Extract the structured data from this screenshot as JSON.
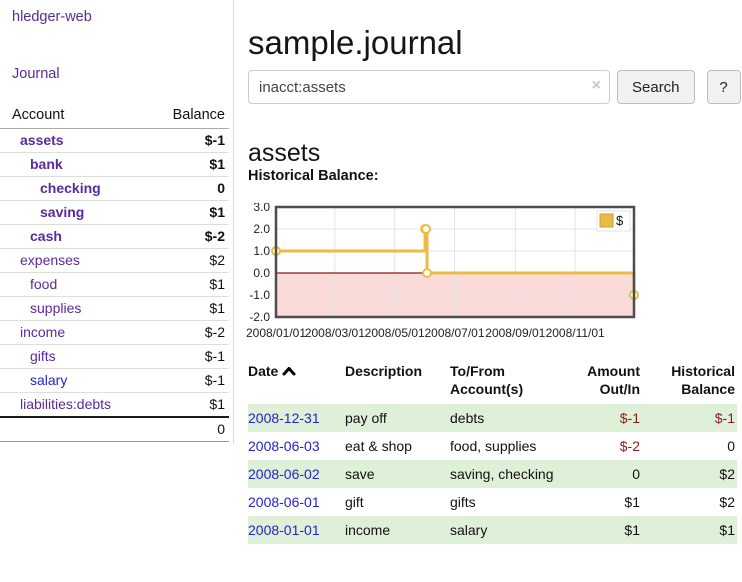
{
  "app": {
    "title": "hledger-web",
    "journal_link": "Journal"
  },
  "colors": {
    "accent_purple": "#5a2a9d",
    "link_blue": "#2424cc",
    "negative_strong": "#8b1c1c",
    "negative_soft": "#b66f73",
    "row_stripe_green": "#dff0d8",
    "chart_line_yellow": "#e9bd45",
    "chart_negative_fill": "#fbdada",
    "chart_zero_line": "#8c1717"
  },
  "sidebar": {
    "columns": {
      "account": "Account",
      "balance": "Balance"
    },
    "accounts": [
      {
        "name": "assets",
        "indent": 1,
        "bold": true,
        "balance": "$-1",
        "neg": "strong",
        "link": "purple"
      },
      {
        "name": "bank",
        "indent": 2,
        "bold": true,
        "balance": "$1",
        "neg": "none",
        "link": "purple"
      },
      {
        "name": "checking",
        "indent": 3,
        "bold": true,
        "balance": "0",
        "neg": "none",
        "link": "purple"
      },
      {
        "name": "saving",
        "indent": 3,
        "bold": true,
        "balance": "$1",
        "neg": "none",
        "link": "purple"
      },
      {
        "name": "cash",
        "indent": 2,
        "bold": true,
        "balance": "$-2",
        "neg": "strong",
        "link": "purple"
      },
      {
        "name": "expenses",
        "indent": 1,
        "bold": false,
        "balance": "$2",
        "neg": "none",
        "link": "purple"
      },
      {
        "name": "food",
        "indent": 2,
        "bold": false,
        "balance": "$1",
        "neg": "none",
        "link": "purple"
      },
      {
        "name": "supplies",
        "indent": 2,
        "bold": false,
        "balance": "$1",
        "neg": "none",
        "link": "purple"
      },
      {
        "name": "income",
        "indent": 1,
        "bold": false,
        "balance": "$-2",
        "neg": "soft",
        "link": "purple"
      },
      {
        "name": "gifts",
        "indent": 2,
        "bold": false,
        "balance": "$-1",
        "neg": "soft",
        "link": "purple"
      },
      {
        "name": "salary",
        "indent": 2,
        "bold": false,
        "balance": "$-1",
        "neg": "soft",
        "link": "blue"
      },
      {
        "name": "liabilities:debts",
        "indent": 1,
        "bold": false,
        "balance": "$1",
        "neg": "none",
        "link": "purple"
      }
    ],
    "total": "0"
  },
  "header": {
    "title": "sample.journal"
  },
  "search": {
    "value": "inacct:assets",
    "clear_icon": "×",
    "button_label": "Search",
    "help_label": "?"
  },
  "account_page": {
    "heading": "assets",
    "chart_label": "Historical Balance:"
  },
  "chart_data": {
    "type": "line",
    "step": true,
    "title": "Historical Balance",
    "series": [
      {
        "name": "$",
        "points": [
          [
            "2008-01-01",
            1
          ],
          [
            "2008-06-01",
            2
          ],
          [
            "2008-06-02",
            2
          ],
          [
            "2008-06-03",
            0
          ],
          [
            "2008-12-31",
            -1
          ]
        ]
      }
    ],
    "x_range": [
      "2008-01-01",
      "2008-12-31"
    ],
    "x_ticks": [
      "2008/01/01",
      "2008/03/01",
      "2008/05/01",
      "2008/07/01",
      "2008/09/01",
      "2008/11/01"
    ],
    "y_ticks": [
      3.0,
      2.0,
      1.0,
      0.0,
      -1.0,
      -2.0
    ],
    "ylim": [
      -2,
      3
    ],
    "grid": true,
    "negative_region_shaded": true,
    "legend": {
      "label": "$",
      "position": "top-right"
    }
  },
  "register": {
    "columns": [
      {
        "label": "Date",
        "sortable": true,
        "align": "left"
      },
      {
        "label": "Description",
        "align": "left"
      },
      {
        "label": "To/From Account(s)",
        "align": "left"
      },
      {
        "label": "Amount Out/In",
        "align": "right"
      },
      {
        "label": "Historical Balance",
        "align": "right"
      }
    ],
    "rows": [
      {
        "date": "2008-12-31",
        "description": "pay off",
        "accounts": "debts",
        "amount": "$-1",
        "amount_neg": true,
        "balance": "$-1",
        "balance_neg": true
      },
      {
        "date": "2008-06-03",
        "description": "eat & shop",
        "accounts": "food, supplies",
        "amount": "$-2",
        "amount_neg": true,
        "balance": "0",
        "balance_neg": false
      },
      {
        "date": "2008-06-02",
        "description": "save",
        "accounts": "saving, checking",
        "amount": "0",
        "amount_neg": false,
        "balance": "$2",
        "balance_neg": false
      },
      {
        "date": "2008-06-01",
        "description": "gift",
        "accounts": "gifts",
        "amount": "$1",
        "amount_neg": false,
        "balance": "$2",
        "balance_neg": false
      },
      {
        "date": "2008-01-01",
        "description": "income",
        "accounts": "salary",
        "amount": "$1",
        "amount_neg": false,
        "balance": "$1",
        "balance_neg": false
      }
    ]
  }
}
